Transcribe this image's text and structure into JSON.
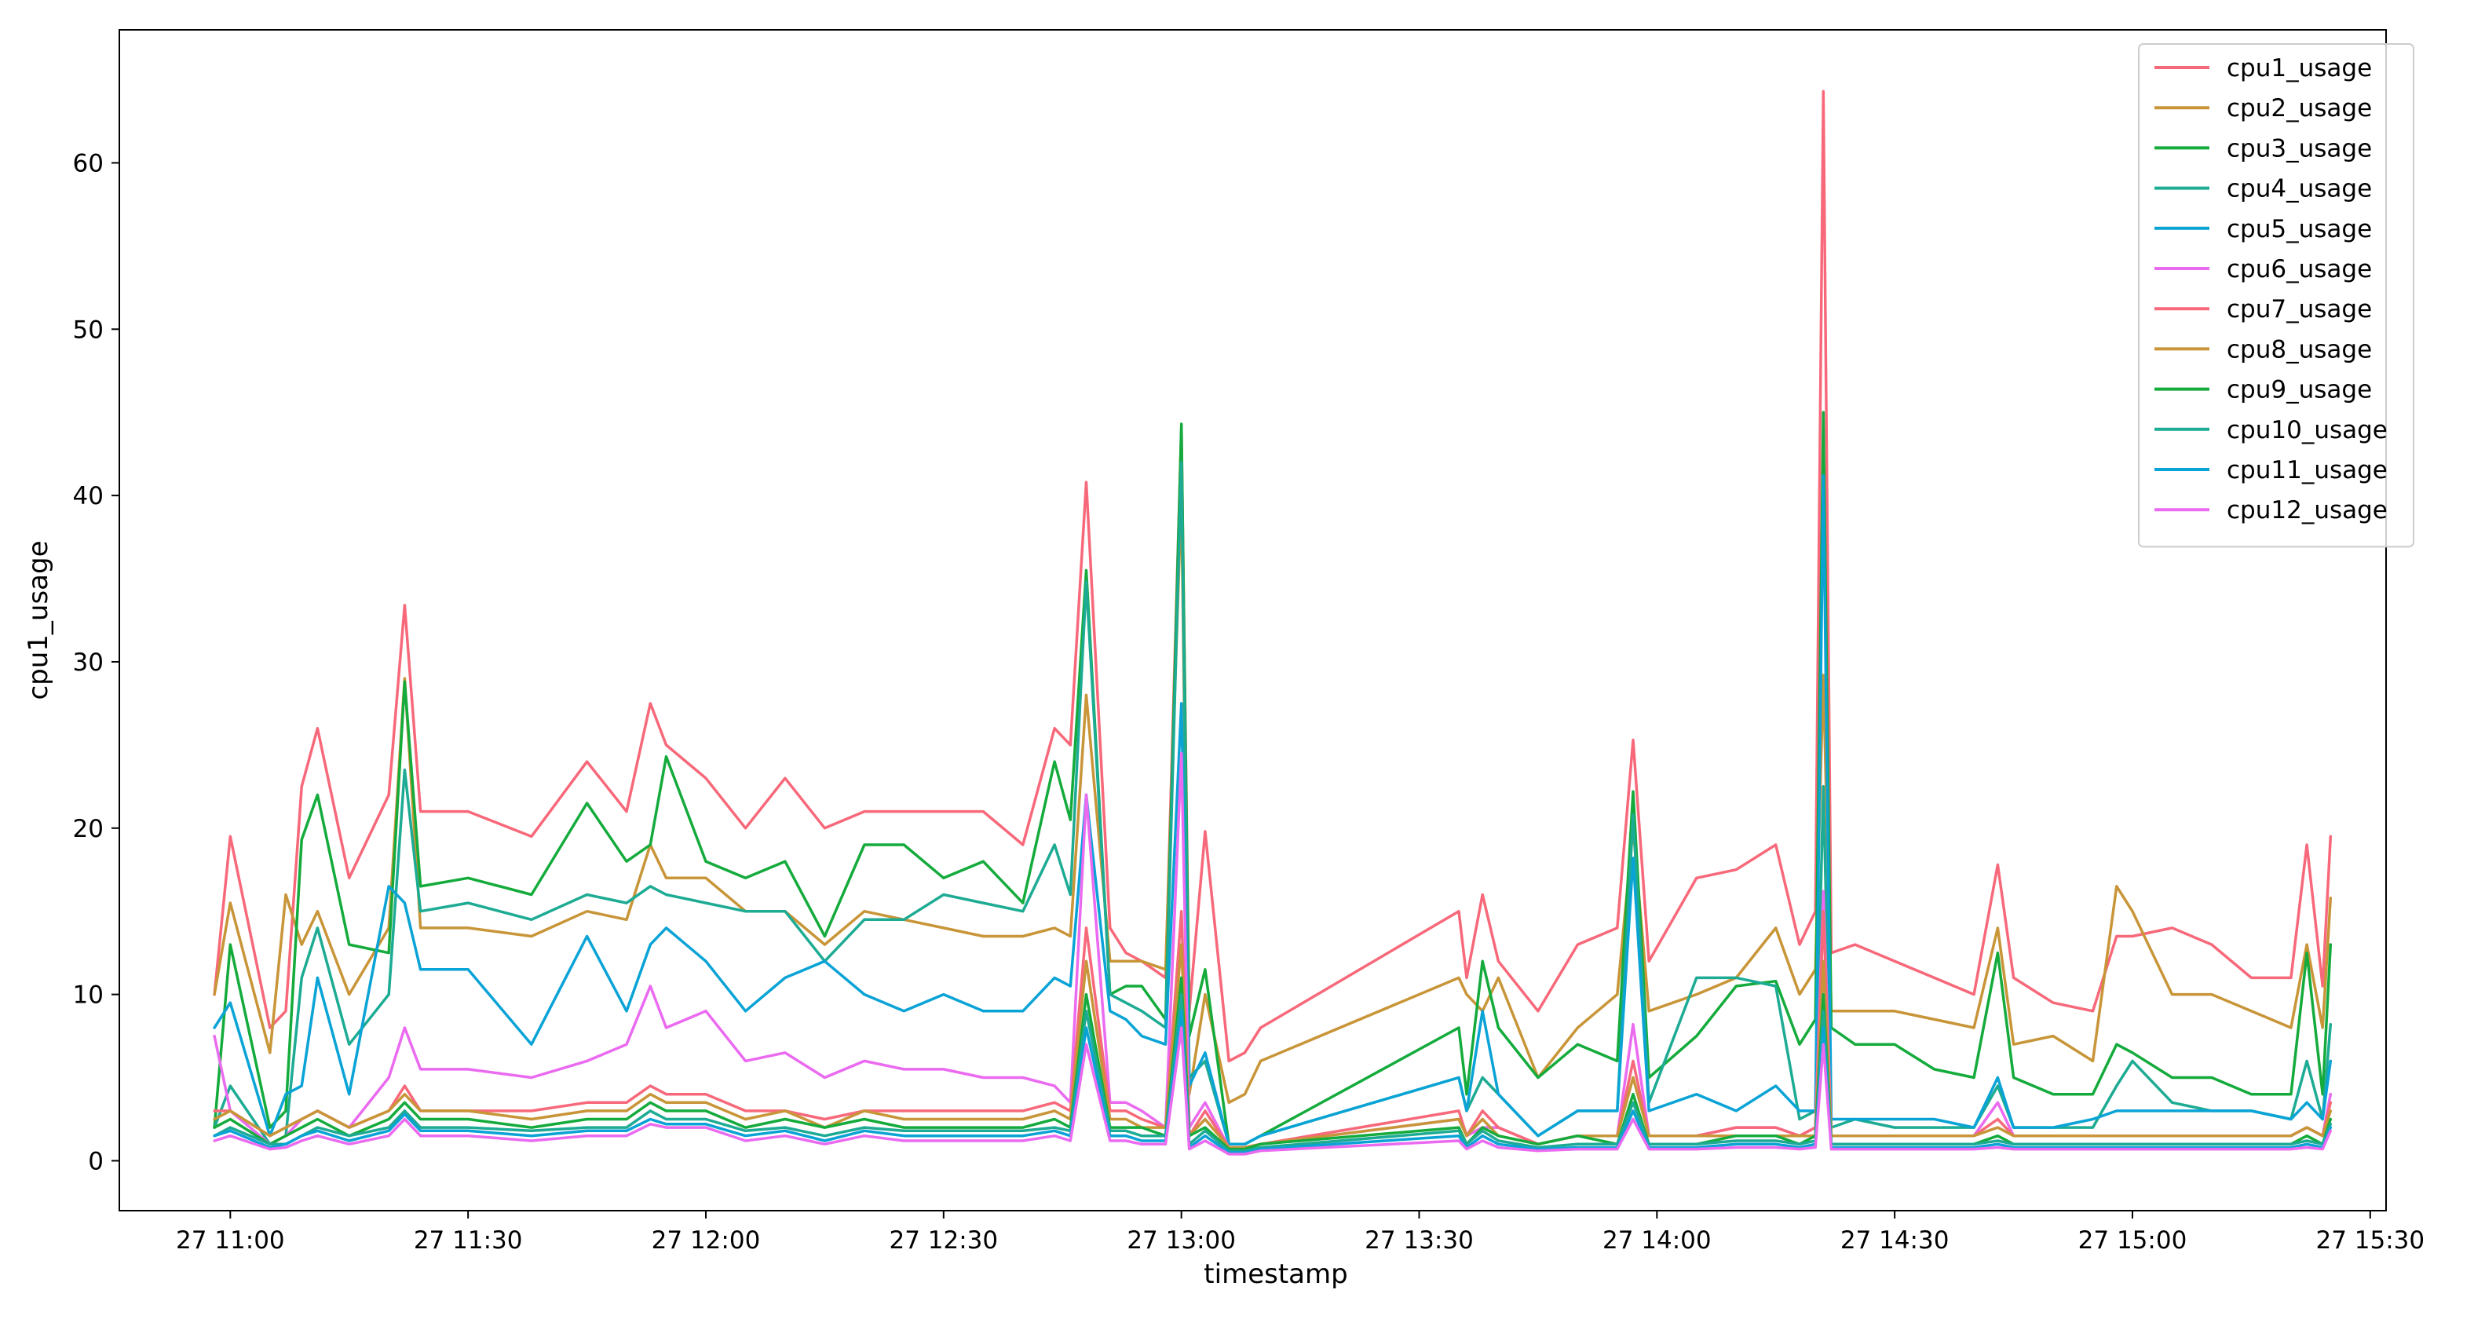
{
  "chart_data": {
    "type": "line",
    "title": "",
    "xlabel": "timestamp",
    "ylabel": "cpu1_usage",
    "xlim": [
      "2024-01-27T10:46:00",
      "2024-01-27T15:32:00"
    ],
    "ylim": [
      -3.0,
      68.0
    ],
    "x_ticks": [
      {
        "t": "2024-01-27T11:00:00",
        "label": "27 11:00"
      },
      {
        "t": "2024-01-27T11:30:00",
        "label": "27 11:30"
      },
      {
        "t": "2024-01-27T12:00:00",
        "label": "27 12:00"
      },
      {
        "t": "2024-01-27T12:30:00",
        "label": "27 12:30"
      },
      {
        "t": "2024-01-27T13:00:00",
        "label": "27 13:00"
      },
      {
        "t": "2024-01-27T13:30:00",
        "label": "27 13:30"
      },
      {
        "t": "2024-01-27T14:00:00",
        "label": "27 14:00"
      },
      {
        "t": "2024-01-27T14:30:00",
        "label": "27 14:30"
      },
      {
        "t": "2024-01-27T15:00:00",
        "label": "27 15:00"
      },
      {
        "t": "2024-01-27T15:30:00",
        "label": "27 15:30"
      }
    ],
    "y_ticks": [
      0,
      10,
      20,
      30,
      40,
      50,
      60
    ],
    "grid": false,
    "legend_position": "top-right",
    "x": [
      "2024-01-27T10:58:00",
      "2024-01-27T11:00:00",
      "2024-01-27T11:05:00",
      "2024-01-27T11:07:00",
      "2024-01-27T11:09:00",
      "2024-01-27T11:11:00",
      "2024-01-27T11:15:00",
      "2024-01-27T11:20:00",
      "2024-01-27T11:22:00",
      "2024-01-27T11:24:00",
      "2024-01-27T11:30:00",
      "2024-01-27T11:38:00",
      "2024-01-27T11:45:00",
      "2024-01-27T11:50:00",
      "2024-01-27T11:53:00",
      "2024-01-27T11:55:00",
      "2024-01-27T12:00:00",
      "2024-01-27T12:05:00",
      "2024-01-27T12:10:00",
      "2024-01-27T12:15:00",
      "2024-01-27T12:20:00",
      "2024-01-27T12:25:00",
      "2024-01-27T12:30:00",
      "2024-01-27T12:35:00",
      "2024-01-27T12:40:00",
      "2024-01-27T12:44:00",
      "2024-01-27T12:46:00",
      "2024-01-27T12:48:00",
      "2024-01-27T12:51:00",
      "2024-01-27T12:53:00",
      "2024-01-27T12:55:00",
      "2024-01-27T12:58:00",
      "2024-01-27T13:00:00",
      "2024-01-27T13:01:00",
      "2024-01-27T13:03:00",
      "2024-01-27T13:06:00",
      "2024-01-27T13:08:00",
      "2024-01-27T13:10:00",
      "2024-01-27T13:35:00",
      "2024-01-27T13:36:00",
      "2024-01-27T13:38:00",
      "2024-01-27T13:40:00",
      "2024-01-27T13:45:00",
      "2024-01-27T13:50:00",
      "2024-01-27T13:55:00",
      "2024-01-27T13:57:00",
      "2024-01-27T13:59:00",
      "2024-01-27T14:05:00",
      "2024-01-27T14:10:00",
      "2024-01-27T14:15:00",
      "2024-01-27T14:18:00",
      "2024-01-27T14:20:00",
      "2024-01-27T14:21:00",
      "2024-01-27T14:22:00",
      "2024-01-27T14:25:00",
      "2024-01-27T14:30:00",
      "2024-01-27T14:35:00",
      "2024-01-27T14:40:00",
      "2024-01-27T14:43:00",
      "2024-01-27T14:45:00",
      "2024-01-27T14:50:00",
      "2024-01-27T14:55:00",
      "2024-01-27T14:58:00",
      "2024-01-27T15:00:00",
      "2024-01-27T15:05:00",
      "2024-01-27T15:10:00",
      "2024-01-27T15:15:00",
      "2024-01-27T15:20:00",
      "2024-01-27T15:22:00",
      "2024-01-27T15:24:00",
      "2024-01-27T15:25:00"
    ],
    "series": [
      {
        "name": "cpu1_usage",
        "color": "#f7697a",
        "values": [
          10,
          19.5,
          8,
          9,
          22.5,
          26,
          17,
          22,
          33.4,
          21,
          21,
          19.5,
          24,
          21,
          27.5,
          25,
          23,
          20,
          23,
          20,
          21,
          21,
          21,
          21,
          19,
          26,
          25,
          40.8,
          14,
          12.5,
          12,
          11,
          44,
          9,
          19.8,
          6,
          6.5,
          8,
          15,
          11,
          16,
          12,
          9,
          13,
          14,
          25.3,
          12,
          17,
          17.5,
          19,
          13,
          15,
          64.3,
          12.5,
          13,
          12,
          11,
          10,
          17.8,
          11,
          9.5,
          9,
          13.5,
          13.5,
          14,
          13,
          11,
          11,
          19,
          10.5,
          19.5
        ]
      },
      {
        "name": "cpu2_usage",
        "color": "#c89538",
        "values": [
          10,
          15.5,
          6.5,
          16,
          13,
          15,
          10,
          14,
          29,
          14,
          14,
          13.5,
          15,
          14.5,
          19,
          17,
          17,
          15,
          15,
          13,
          15,
          14.5,
          14,
          13.5,
          13.5,
          14,
          13.5,
          28,
          12,
          12,
          12,
          11.5,
          40,
          4,
          10,
          3.5,
          4,
          6,
          11,
          10,
          9,
          11,
          5,
          8,
          10,
          20,
          9,
          10,
          11,
          14,
          10,
          11.5,
          29.2,
          9,
          9,
          9,
          8.5,
          8,
          14,
          7,
          7.5,
          6,
          16.5,
          15,
          10,
          10,
          9,
          8,
          13,
          8,
          15.8
        ]
      },
      {
        "name": "cpu3_usage",
        "color": "#14ab3c",
        "values": [
          2,
          13,
          2,
          3,
          19.3,
          22,
          13,
          12.5,
          28.8,
          16.5,
          17,
          16,
          21.5,
          18,
          19,
          24.3,
          18,
          17,
          18,
          13.5,
          19,
          19,
          17,
          18,
          15.5,
          24,
          20.5,
          35.5,
          10,
          10.5,
          10.5,
          8.5,
          44.3,
          7.5,
          11.5,
          1,
          1,
          1.5,
          8,
          4,
          12,
          8,
          5,
          7,
          6,
          22.2,
          5,
          7.5,
          10.5,
          10.8,
          7,
          8.5,
          45,
          8,
          7,
          7,
          5.5,
          5,
          12.5,
          5,
          4,
          4,
          7,
          6.5,
          5,
          5,
          4,
          4,
          12.5,
          4,
          13
        ]
      },
      {
        "name": "cpu4_usage",
        "color": "#1dab94",
        "values": [
          2,
          4.5,
          1,
          1.5,
          11,
          14,
          7,
          10,
          23.5,
          15,
          15.5,
          14.5,
          16,
          15.5,
          16.5,
          16,
          15.5,
          15,
          15,
          12,
          14.5,
          14.5,
          16,
          15.5,
          15,
          19,
          16,
          34.8,
          10,
          9.5,
          9,
          8,
          42,
          5,
          6,
          1,
          1,
          1.5,
          5,
          3,
          5,
          4,
          1.5,
          3,
          3,
          20.8,
          3.5,
          11,
          11,
          10.5,
          2.5,
          3,
          22.5,
          2,
          2.5,
          2,
          2,
          2,
          4.5,
          2,
          2,
          2,
          4.5,
          6,
          3.5,
          3,
          3,
          2.5,
          6,
          2.5,
          8.2
        ]
      },
      {
        "name": "cpu5_usage",
        "color": "#0aa3d6",
        "values": [
          8,
          9.5,
          1.5,
          4,
          4.5,
          11,
          4,
          16.5,
          15.5,
          11.5,
          11.5,
          7,
          13.5,
          9,
          13,
          14,
          12,
          9,
          11,
          12,
          10,
          9,
          10,
          9,
          9,
          11,
          10.5,
          22,
          9,
          8.5,
          7.5,
          7,
          27.5,
          4.5,
          6.5,
          1,
          1,
          1.5,
          5,
          3,
          9,
          4,
          1.5,
          3,
          3,
          18.2,
          3,
          4,
          3,
          4.5,
          3,
          3,
          41.2,
          2.5,
          2.5,
          2.5,
          2.5,
          2,
          5,
          2,
          2,
          2.5,
          3,
          3,
          3,
          3,
          3,
          2.5,
          3.5,
          2.5,
          6
        ]
      },
      {
        "name": "cpu6_usage",
        "color": "#ea6af0",
        "values": [
          7.5,
          3,
          1,
          1.5,
          2.5,
          3,
          2,
          5,
          8,
          5.5,
          5.5,
          5,
          6,
          7,
          10.5,
          8,
          9,
          6,
          6.5,
          5,
          6,
          5.5,
          5.5,
          5,
          5,
          4.5,
          3.5,
          22,
          3.5,
          3.5,
          3,
          2,
          24.5,
          2,
          3.5,
          0.8,
          0.8,
          1,
          2.5,
          1.5,
          2,
          2,
          1,
          1.5,
          1.5,
          8.2,
          1.5,
          1.5,
          2,
          2,
          1.5,
          2,
          16.2,
          1.5,
          1.5,
          1.5,
          1.5,
          1.5,
          3.5,
          1.5,
          1.5,
          1.5,
          1.5,
          1.5,
          1.5,
          1.5,
          1.5,
          1.5,
          2,
          1.5,
          4
        ]
      },
      {
        "name": "cpu7_usage",
        "color": "#f7697a",
        "values": [
          3,
          3,
          1.5,
          2,
          2.5,
          3,
          2,
          3,
          4.5,
          3,
          3,
          3,
          3.5,
          3.5,
          4.5,
          4,
          4,
          3,
          3,
          2.5,
          3,
          3,
          3,
          3,
          3,
          3.5,
          3,
          14,
          3,
          3,
          2.5,
          2,
          15,
          1.5,
          3,
          0.8,
          0.8,
          1,
          3,
          1.5,
          3,
          2,
          1,
          1.5,
          1.5,
          6,
          1.5,
          1.5,
          2,
          2,
          1.5,
          2,
          15,
          1.5,
          1.5,
          1.5,
          1.5,
          1.5,
          2.5,
          1.5,
          1.5,
          1.5,
          1.5,
          1.5,
          1.5,
          1.5,
          1.5,
          1.5,
          2,
          1.5,
          3.5
        ]
      },
      {
        "name": "cpu8_usage",
        "color": "#c89538",
        "values": [
          2.5,
          3,
          1.5,
          2,
          2.5,
          3,
          2,
          3,
          4,
          3,
          3,
          2.5,
          3,
          3,
          4,
          3.5,
          3.5,
          2.5,
          3,
          2,
          3,
          2.5,
          2.5,
          2.5,
          2.5,
          3,
          2.5,
          12,
          2.5,
          2.5,
          2,
          2,
          13,
          1.5,
          2.5,
          0.8,
          0.8,
          1,
          2.5,
          1.5,
          2.5,
          1.5,
          1,
          1.5,
          1.5,
          5,
          1.5,
          1.5,
          1.5,
          1.5,
          1.5,
          1.5,
          12,
          1.5,
          1.5,
          1.5,
          1.5,
          1.5,
          2,
          1.5,
          1.5,
          1.5,
          1.5,
          1.5,
          1.5,
          1.5,
          1.5,
          1.5,
          2,
          1.5,
          3
        ]
      },
      {
        "name": "cpu9_usage",
        "color": "#14ab3c",
        "values": [
          2,
          2.5,
          1,
          1.5,
          2,
          2.5,
          1.5,
          2.5,
          3.5,
          2.5,
          2.5,
          2,
          2.5,
          2.5,
          3.5,
          3,
          3,
          2,
          2.5,
          2,
          2.5,
          2,
          2,
          2,
          2,
          2.5,
          2,
          10,
          2,
          2,
          2,
          1.5,
          11,
          1.5,
          2,
          0.7,
          0.7,
          1,
          2,
          1,
          2,
          1.5,
          1,
          1.5,
          1,
          4,
          1,
          1,
          1.5,
          1.5,
          1,
          1.5,
          10,
          1,
          1,
          1,
          1,
          1,
          1.5,
          1,
          1,
          1,
          1,
          1,
          1,
          1,
          1,
          1,
          1.5,
          1,
          2.5
        ]
      },
      {
        "name": "cpu10_usage",
        "color": "#1dab94",
        "values": [
          1.5,
          2,
          1,
          1,
          1.5,
          2,
          1.5,
          2,
          3,
          2,
          2,
          1.8,
          2,
          2,
          3,
          2.5,
          2.5,
          1.8,
          2,
          1.5,
          2,
          1.8,
          1.8,
          1.8,
          1.8,
          2,
          1.8,
          9,
          1.8,
          1.8,
          1.5,
          1.5,
          10,
          1,
          1.8,
          0.6,
          0.6,
          0.8,
          1.8,
          1,
          1.8,
          1.2,
          0.8,
          1,
          1,
          3.5,
          1,
          1,
          1.2,
          1.2,
          1,
          1.2,
          9,
          1,
          1,
          1,
          1,
          1,
          1.2,
          1,
          1,
          1,
          1,
          1,
          1,
          1,
          1,
          1,
          1.2,
          1,
          2.2
        ]
      },
      {
        "name": "cpu11_usage",
        "color": "#0aa3d6",
        "values": [
          1.5,
          1.8,
          0.8,
          1,
          1.5,
          1.8,
          1.2,
          1.8,
          2.8,
          1.8,
          1.8,
          1.5,
          1.8,
          1.8,
          2.5,
          2.2,
          2.2,
          1.5,
          1.8,
          1.2,
          1.8,
          1.5,
          1.5,
          1.5,
          1.5,
          1.8,
          1.5,
          8,
          1.5,
          1.5,
          1.2,
          1.2,
          9,
          0.8,
          1.5,
          0.5,
          0.5,
          0.7,
          1.5,
          0.8,
          1.5,
          1,
          0.7,
          0.8,
          0.8,
          3,
          0.8,
          0.8,
          1,
          1,
          0.8,
          1,
          8,
          0.8,
          0.8,
          0.8,
          0.8,
          0.8,
          1,
          0.8,
          0.8,
          0.8,
          0.8,
          0.8,
          0.8,
          0.8,
          0.8,
          0.8,
          1,
          0.8,
          2
        ]
      },
      {
        "name": "cpu12_usage",
        "color": "#ea6af0",
        "values": [
          1.2,
          1.5,
          0.7,
          0.8,
          1.2,
          1.5,
          1,
          1.5,
          2.5,
          1.5,
          1.5,
          1.2,
          1.5,
          1.5,
          2.2,
          2,
          2,
          1.2,
          1.5,
          1,
          1.5,
          1.2,
          1.2,
          1.2,
          1.2,
          1.5,
          1.2,
          7,
          1.2,
          1.2,
          1,
          1,
          8,
          0.7,
          1.2,
          0.4,
          0.4,
          0.6,
          1.2,
          0.7,
          1.2,
          0.8,
          0.6,
          0.7,
          0.7,
          2.5,
          0.7,
          0.7,
          0.8,
          0.8,
          0.7,
          0.8,
          7,
          0.7,
          0.7,
          0.7,
          0.7,
          0.7,
          0.8,
          0.7,
          0.7,
          0.7,
          0.7,
          0.7,
          0.7,
          0.7,
          0.7,
          0.7,
          0.8,
          0.7,
          1.8
        ]
      }
    ]
  }
}
